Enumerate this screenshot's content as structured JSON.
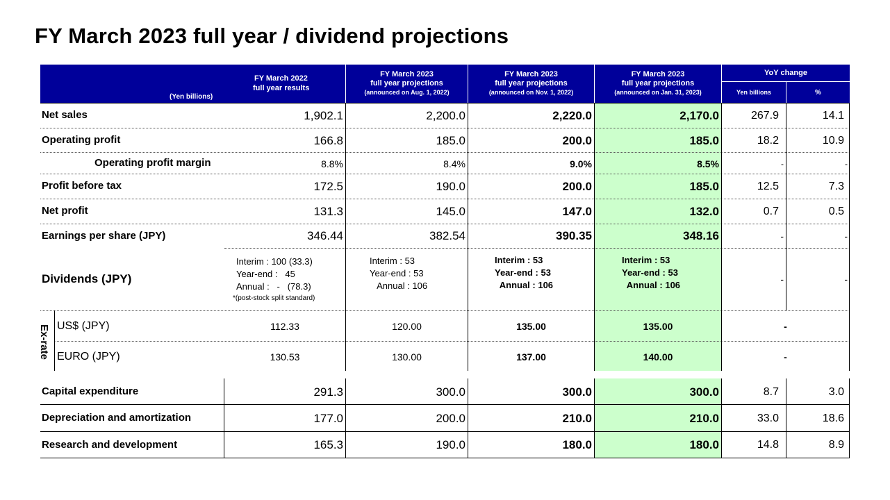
{
  "title": "FY March 2023 full year / dividend projections",
  "header": {
    "unit": "(Yen billions)",
    "col1_line1": "FY March 2022",
    "col1_line2": "full year results",
    "col2_line1": "FY March 2023",
    "col2_line2": "full year projections",
    "col2_line3": "(announced on Aug. 1, 2022)",
    "col3_line1": "FY March 2023",
    "col3_line2": "full year projections",
    "col3_line3": "(announced on Nov. 1, 2022)",
    "col4_line1": "FY March 2023",
    "col4_line2": "full year projections",
    "col4_line3": "(announced on Jan. 31, 2023)",
    "yoy": "YoY change",
    "yoy_yen": "Yen billions",
    "yoy_pct": "%"
  },
  "rows": [
    {
      "label": "Net sales",
      "fy22": "1,902.1",
      "aug": "2,200.0",
      "nov": "2,220.0",
      "jan": "2,170.0",
      "yoy_yen": "267.9",
      "yoy_pct": "14.1"
    },
    {
      "label": "Operating profit",
      "fy22": "166.8",
      "aug": "185.0",
      "nov": "200.0",
      "jan": "185.0",
      "yoy_yen": "18.2",
      "yoy_pct": "10.9"
    },
    {
      "label": "Operating profit margin",
      "fy22": "8.8%",
      "aug": "8.4%",
      "nov": "9.0%",
      "jan": "8.5%",
      "yoy_yen": "-",
      "yoy_pct": "-"
    },
    {
      "label": "Profit before tax",
      "fy22": "172.5",
      "aug": "190.0",
      "nov": "200.0",
      "jan": "185.0",
      "yoy_yen": "12.5",
      "yoy_pct": "7.3"
    },
    {
      "label": "Net profit",
      "fy22": "131.3",
      "aug": "145.0",
      "nov": "147.0",
      "jan": "132.0",
      "yoy_yen": "0.7",
      "yoy_pct": "0.5"
    },
    {
      "label": "Earnings per share (JPY)",
      "fy22": "346.44",
      "aug": "382.54",
      "nov": "390.35",
      "jan": "348.16",
      "yoy_yen": "-",
      "yoy_pct": "-"
    }
  ],
  "dividends": {
    "label": "Dividends (JPY)",
    "fy22": "Interim : 100 (33.3)\nYear-end :   45\nAnnual :   -   (78.3)",
    "fy22_note": "*(post-stock split standard)",
    "aug": "Interim : 53\nYear-end : 53\n   Annual : 106",
    "nov": "Interim : 53\nYear-end : 53\n  Annual : 106",
    "jan": "Interim : 53\nYear-end : 53\n  Annual : 106",
    "yoy_yen": "-",
    "yoy_pct": "-"
  },
  "exrate": {
    "label": "Ex-rate",
    "rows": [
      {
        "label": "US$ (JPY)",
        "fy22": "112.33",
        "aug": "120.00",
        "nov": "135.00",
        "jan": "135.00",
        "yoy": "-"
      },
      {
        "label": "EURO (JPY)",
        "fy22": "130.53",
        "aug": "130.00",
        "nov": "137.00",
        "jan": "140.00",
        "yoy": "-"
      }
    ]
  },
  "rows2": [
    {
      "label": "Capital expenditure",
      "fy22": "291.3",
      "aug": "300.0",
      "nov": "300.0",
      "jan": "300.0",
      "yoy_yen": "8.7",
      "yoy_pct": "3.0"
    },
    {
      "label": "Depreciation and amortization",
      "fy22": "177.0",
      "aug": "200.0",
      "nov": "210.0",
      "jan": "210.0",
      "yoy_yen": "33.0",
      "yoy_pct": "18.6"
    },
    {
      "label": "Research and development",
      "fy22": "165.3",
      "aug": "190.0",
      "nov": "180.0",
      "jan": "180.0",
      "yoy_yen": "14.8",
      "yoy_pct": "8.9"
    }
  ],
  "colors": {
    "header_bg": "#00009a",
    "highlight": "#ccffcc"
  }
}
